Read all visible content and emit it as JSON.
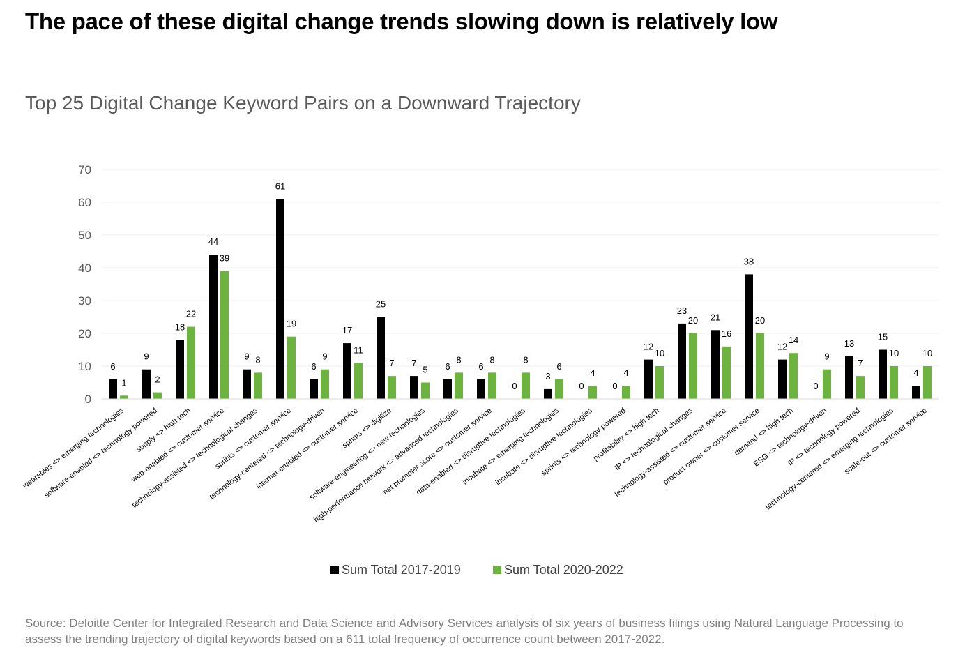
{
  "headline": "The pace of these digital change trends slowing down is relatively low",
  "source": "Source: Deloitte Center for Integrated Research and Data Science and Advisory Services analysis of six years of business filings using Natural Language Processing to assess the trending trajectory of digital keywords based on a 611 total frequency of occurrence count between 2017-2022.",
  "chart_data": {
    "type": "bar",
    "title": "Top 25 Digital Change Keyword Pairs on a Downward Trajectory",
    "xlabel": "",
    "ylabel": "",
    "ylim": [
      0,
      70
    ],
    "yticks": [
      0,
      10,
      20,
      30,
      40,
      50,
      60,
      70
    ],
    "grid": true,
    "legend_position": "bottom",
    "categories": [
      "wearables <> emerging technologies",
      "software-enabled <> technology powered",
      "supply <> high tech",
      "web-enabled <> customer service",
      "technology-assisted <> technological changes",
      "sprints <> customer service",
      "technology-centered <> technology-driven",
      "internet-enabled <> customer service",
      "sprints <> digitize",
      "software-engineering <> new technologies",
      "high-performance network <> advanced technologies",
      "net promoter score <> customer service",
      "data-enabled <> disruptive technologies",
      "incubate <> emerging technologies",
      "incubate <> disruptive technologies",
      "sprints <> technology powered",
      "profitability <> high tech",
      "IP <> technological changes",
      "technology-assisted <> customer service",
      "product owner <> customer service",
      "demand <> high tech",
      "ESG <> technology-driven",
      "IP <> technology powered",
      "technology-centered <> emerging technologies",
      "scale-out <> customer service"
    ],
    "series": [
      {
        "name": "Sum Total 2017-2019",
        "color": "#000000",
        "values": [
          6,
          9,
          18,
          44,
          9,
          61,
          6,
          17,
          25,
          7,
          6,
          6,
          0,
          3,
          0,
          0,
          12,
          23,
          21,
          38,
          12,
          0,
          13,
          15,
          4
        ]
      },
      {
        "name": "Sum Total 2020-2022",
        "color": "#6DB33F",
        "values": [
          1,
          2,
          22,
          39,
          8,
          19,
          9,
          11,
          7,
          5,
          8,
          8,
          8,
          6,
          4,
          4,
          10,
          20,
          16,
          20,
          14,
          9,
          7,
          10,
          10
        ]
      }
    ]
  }
}
